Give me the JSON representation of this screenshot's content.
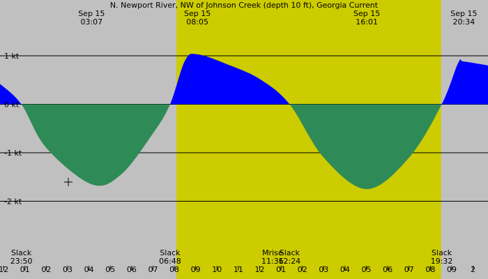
{
  "chart_data": {
    "type": "area",
    "title": "N. Newport River, NW of Johnson Creek (depth 10 ft), Georgia Current",
    "unit": "kt",
    "y_ticks": [
      {
        "value": 1,
        "label": "1 kt"
      },
      {
        "value": 0,
        "label": "0 kt"
      },
      {
        "value": -1,
        "label": "-1 kt"
      },
      {
        "value": -2,
        "label": "-2 kt"
      }
    ],
    "hour_ticks": [
      "11",
      "12",
      "01",
      "02",
      "03",
      "04",
      "05",
      "06",
      "07",
      "08",
      "09",
      "10",
      "11",
      "12",
      "01",
      "02",
      "03",
      "04",
      "05",
      "06",
      "07",
      "08",
      "09",
      "2"
    ],
    "events_top": [
      {
        "date": "Sep 15",
        "time": "03:07",
        "hour": 27.12,
        "kind": "min"
      },
      {
        "date": "Sep 15",
        "time": "08:05",
        "hour": 32.08,
        "kind": "max"
      },
      {
        "date": "Sep 15",
        "time": "16:01",
        "hour": 40.02,
        "kind": "min"
      },
      {
        "date": "Sep 15",
        "time": "20:34",
        "hour": 44.57,
        "kind": "max"
      }
    ],
    "events_bottom": [
      {
        "label": "Slack",
        "time": "23:50",
        "hour": 23.83
      },
      {
        "label": "Slack",
        "time": "06:48",
        "hour": 30.8
      },
      {
        "label": "Mrise",
        "time": "11:36",
        "hour": 35.6
      },
      {
        "label": "Slack",
        "time": "12:24",
        "hour": 36.4
      },
      {
        "label": "Slack",
        "time": "19:32",
        "hour": 43.53
      }
    ],
    "current_points": [
      {
        "hour": 22.83,
        "value": 0.42
      },
      {
        "hour": 23.83,
        "value": 0.0
      },
      {
        "hour": 25.0,
        "value": -0.9
      },
      {
        "hour": 27.12,
        "value": -1.65
      },
      {
        "hour": 28.5,
        "value": -1.45
      },
      {
        "hour": 30.0,
        "value": -0.6
      },
      {
        "hour": 30.8,
        "value": 0.0
      },
      {
        "hour": 31.5,
        "value": 0.9
      },
      {
        "hour": 32.08,
        "value": 1.03
      },
      {
        "hour": 33.5,
        "value": 0.82
      },
      {
        "hour": 35.0,
        "value": 0.52
      },
      {
        "hour": 36.4,
        "value": 0.0
      },
      {
        "hour": 38.0,
        "value": -1.1
      },
      {
        "hour": 40.02,
        "value": -1.75
      },
      {
        "hour": 42.0,
        "value": -1.1
      },
      {
        "hour": 43.53,
        "value": 0.0
      },
      {
        "hour": 44.3,
        "value": 0.85
      },
      {
        "hour": 44.57,
        "value": 0.88
      },
      {
        "hour": 45.7,
        "value": 0.8
      }
    ],
    "daylight": {
      "start_hour": 31.1,
      "end_hour": 43.5
    },
    "x_range_hours": [
      22.83,
      45.7
    ],
    "y_range": [
      -3.23,
      2.15
    ],
    "colors": {
      "flood": "#0000ff",
      "ebb": "#2e8b57",
      "night": "#c0c0c0",
      "day": "#cccc00",
      "grid": "#000000"
    }
  }
}
